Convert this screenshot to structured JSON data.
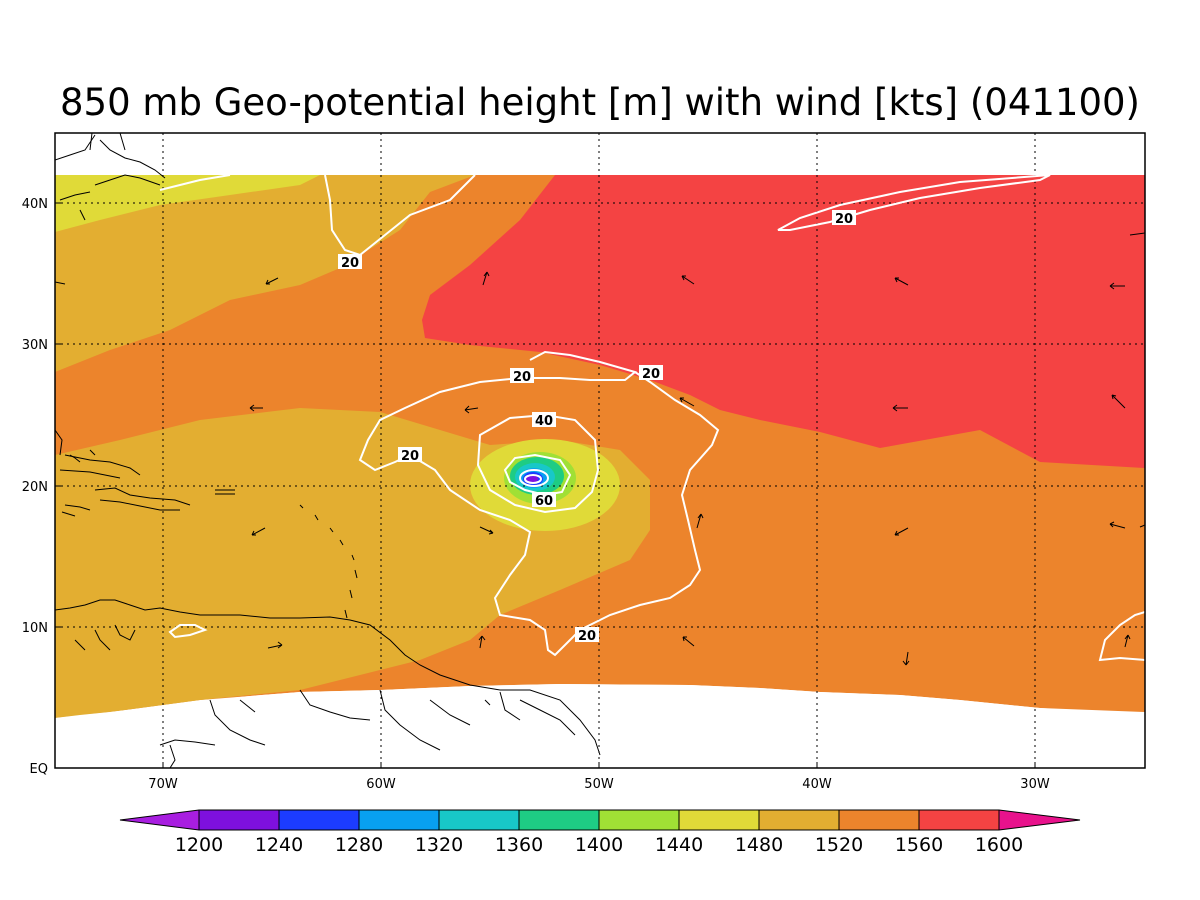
{
  "title": "850 mb Geo-potential height [m] with wind [kts] (041100)",
  "colors": {
    "c1480": "#e0da38",
    "c1520": "#e3ae31",
    "c1560": "#ec842c",
    "c1600": "#f44343",
    "c1440": "#a0e035",
    "c1400": "#1ecc84",
    "c1360": "#18c8c8",
    "c1320": "#08a0f0",
    "c1280": "#1c3cff",
    "c1240": "#7e10de",
    "c1200": "#a81ee0",
    "over": "#e8128c",
    "contour": "#ffffff",
    "coast": "#000000"
  },
  "axes": {
    "lon_labels": [
      "70W",
      "60W",
      "50W",
      "40W",
      "30W"
    ],
    "lat_labels": [
      "40N",
      "30N",
      "20N",
      "10N",
      "EQ"
    ]
  },
  "contour_labels": [
    "20",
    "20",
    "20",
    "20",
    "20",
    "20",
    "40",
    "60"
  ],
  "colorbar": {
    "labels": [
      "1200",
      "1240",
      "1280",
      "1320",
      "1360",
      "1400",
      "1440",
      "1480",
      "1520",
      "1560",
      "1600"
    ]
  }
}
